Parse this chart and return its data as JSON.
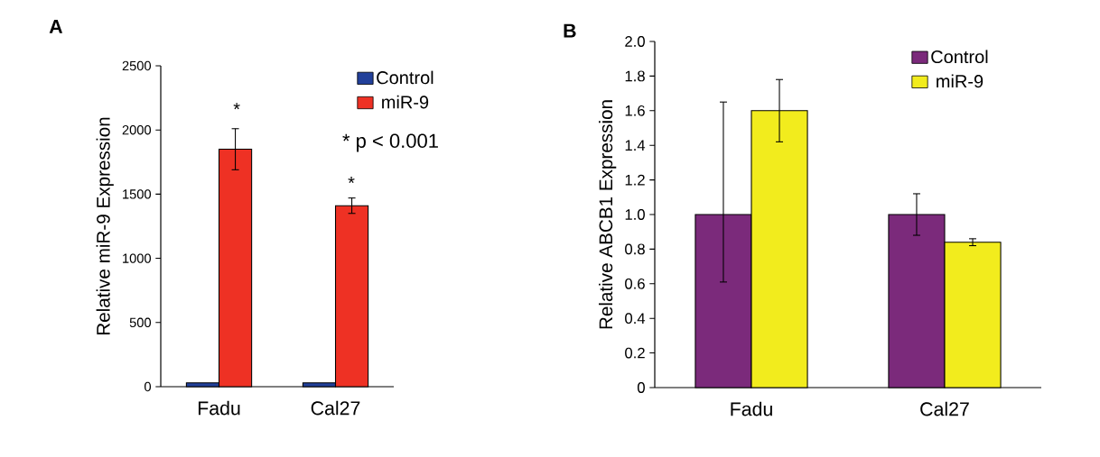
{
  "chart_data": [
    {
      "type": "bar",
      "title": "A",
      "ylabel": "Relative miR-9 Expression",
      "categories": [
        "Fadu",
        "Cal27"
      ],
      "series": [
        {
          "name": "Control",
          "color": "#22409a",
          "values": [
            30,
            30
          ]
        },
        {
          "name": "miR-9",
          "color": "#ee3124",
          "values": [
            1850,
            1410
          ],
          "errors": [
            160,
            60
          ]
        }
      ],
      "ylim": [
        0,
        2500
      ],
      "yticks": [
        0,
        500,
        1000,
        1500,
        2000,
        2500
      ],
      "legend": "top right",
      "annotations": [
        "*",
        "*",
        "* p < 0.001"
      ]
    },
    {
      "type": "bar",
      "title": "B",
      "ylabel": "Relative ABCB1 Expression",
      "categories": [
        "Fadu",
        "Cal27"
      ],
      "series": [
        {
          "name": "Control",
          "color": "#7b2a7b",
          "values": [
            1.0,
            1.0
          ],
          "errors": [
            [
              0.61,
              1.65
            ],
            0.12
          ]
        },
        {
          "name": "miR-9",
          "color": "#f2ec1d",
          "values": [
            1.6,
            0.84
          ],
          "errors": [
            0.18,
            0.02
          ]
        }
      ],
      "ylim": [
        0,
        2.0
      ],
      "yticks": [
        0,
        0.2,
        0.4,
        0.6,
        0.8,
        {
          "value": 1.0,
          "label": "1.0"
        },
        1.2,
        1.4,
        1.6,
        1.8,
        {
          "value": 2.0,
          "label": "2.0"
        }
      ],
      "legend": "top right"
    }
  ]
}
